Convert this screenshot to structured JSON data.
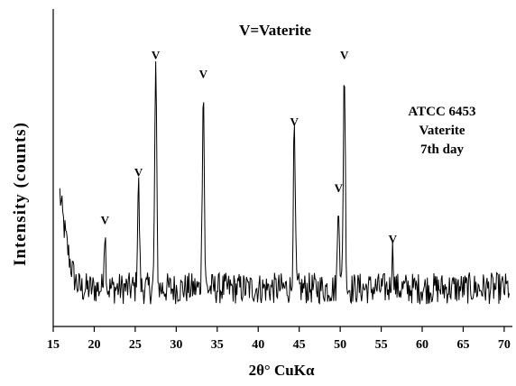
{
  "chart_data": {
    "type": "line",
    "title": "",
    "legend_note": "V=Vaterite",
    "sample_label": [
      "ATCC 6453",
      "Vaterite",
      "7th day"
    ],
    "xlabel": "2θ° CuKα",
    "ylabel": "Intensity (counts)",
    "xlim": [
      15,
      71
    ],
    "ylim": [
      0,
      100
    ],
    "x_ticks": [
      15,
      20,
      25,
      30,
      35,
      40,
      45,
      50,
      55,
      60,
      65,
      70
    ],
    "x_tick_labels": [
      "15",
      "20",
      "25",
      "30",
      "35",
      "40",
      "45",
      "50",
      "55",
      "60",
      "65",
      "70"
    ],
    "y_ticks_shown": false,
    "grid": false,
    "baseline": 12,
    "noise_amplitude": 5,
    "peaks": [
      {
        "x": 21.3,
        "intensity": 30,
        "label": "V"
      },
      {
        "x": 25.4,
        "intensity": 45,
        "label": "V"
      },
      {
        "x": 27.5,
        "intensity": 82,
        "label": "V"
      },
      {
        "x": 33.3,
        "intensity": 76,
        "label": "V"
      },
      {
        "x": 44.4,
        "intensity": 61,
        "label": "V"
      },
      {
        "x": 49.8,
        "intensity": 40,
        "label": "V"
      },
      {
        "x": 50.5,
        "intensity": 82,
        "label": "V"
      },
      {
        "x": 56.4,
        "intensity": 24,
        "label": "V"
      }
    ],
    "low_angle_rise": {
      "start_x": 15.8,
      "start_intensity": 42,
      "decay_end_x": 18.5
    }
  },
  "colors": {
    "line": "#000000",
    "axis": "#000000",
    "background": "#ffffff"
  }
}
